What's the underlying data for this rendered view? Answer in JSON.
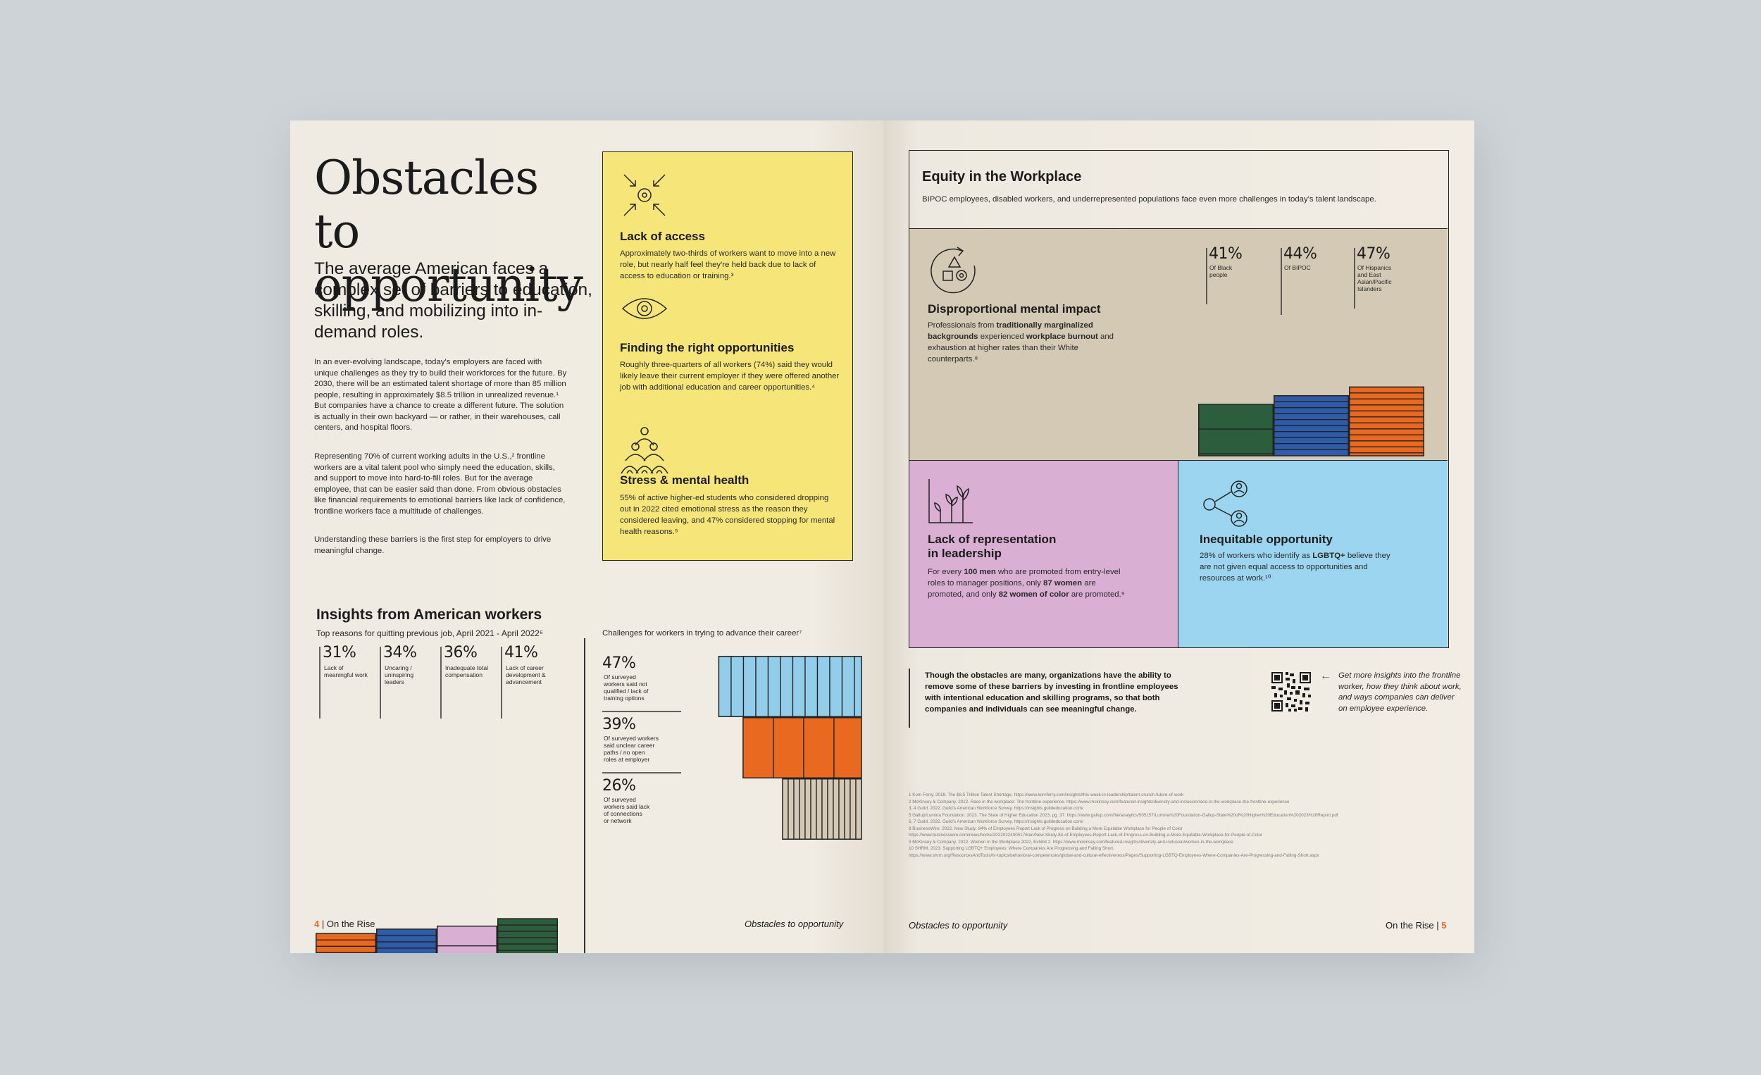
{
  "left_page": {
    "title": "Obstacles to opportunity",
    "lede": "The average American faces a complex set of barriers to education, skilling, and mobilizing into in-demand roles.",
    "paragraphs": [
      "In an ever-evolving landscape, today's employers are faced with unique challenges as they try to build their workforces for the future. By 2030, there will be an estimated talent shortage of more than 85 million people, resulting in approximately $8.5 trillion in unrealized revenue.¹ But companies have a chance to create a different future. The solution is actually in their own backyard — or rather, in their warehouses, call centers, and hospital floors.",
      "Representing 70% of current working adults in the U.S.,² frontline workers are a vital talent pool who simply need the education, skills, and support to move into hard-to-fill roles. But for the average employee, that can be easier said than done. From obvious obstacles like financial requirements to emotional barriers like lack of confidence, frontline workers face a multitude of challenges.",
      "Understanding these barriers is the first step for employers to drive meaningful change."
    ],
    "barriers": [
      {
        "icon": "arrows-converge-icon",
        "heading": "Lack of access",
        "text": "Approximately two-thirds of workers want to move into a new role, but nearly half feel they're held back due to lack of access to education or training.³"
      },
      {
        "icon": "eye-icon",
        "heading": "Finding the right opportunities",
        "text": "Roughly three-quarters of all workers (74%) said they would likely leave their current employer if they were offered another job with additional education and career opportunities.⁴"
      },
      {
        "icon": "people-stack-icon",
        "heading": "Stress & mental health",
        "text": "55% of active higher-ed students who considered dropping out in 2022 cited emotional stress as the reason they considered leaving, and 47% considered stopping for mental health reasons.⁵"
      }
    ],
    "insights_title": "Insights from American workers",
    "quit_chart_subtitle": "Top reasons for quitting previous job, April 2021 - April 2022⁶",
    "advance_chart_subtitle": "Challenges for workers in trying to advance their career⁷",
    "footer_page": "4",
    "footer_pub": "On the Rise",
    "footer_section": "Obstacles to opportunity"
  },
  "right_page": {
    "equity_title": "Equity in the Workplace",
    "equity_sub": "BIPOC employees, disabled workers, and underrepresented populations face even more challenges in today's talent landscape.",
    "mental": {
      "heading": "Disproportional mental impact",
      "text_pre": "Professionals from ",
      "text_b1": "traditionally marginalized backgrounds",
      "text_mid": " experienced ",
      "text_b2": "workplace burnout",
      "text_post": " and exhaustion at higher rates than their White counterparts.⁸"
    },
    "leadership": {
      "heading_1": "Lack of representation",
      "heading_2": "in leadership",
      "t1": "For every ",
      "b1": "100 men",
      "t2": " who are promoted from entry-level roles to manager positions, only ",
      "b2": "87 women",
      "t3": " are promoted, and only ",
      "b3": "82 women of color",
      "t4": " are promoted.⁹"
    },
    "inequitable": {
      "heading": "Inequitable opportunity",
      "t1": "28% of workers who identify as ",
      "b1": "LGBTQ+",
      "t2": " believe they are not given equal access to opportunities and resources at work.¹⁰"
    },
    "closing": "Though the obstacles are many, organizations have the ability to remove some of these barriers by investing in frontline employees with intentional education and skilling programs, so that both companies and individuals can see meaningful change.",
    "qr_cta": "Get more insights into the frontline worker, how they think about work, and ways companies can deliver on employee experience.",
    "footnotes": [
      "1  Korn Ferry. 2018. The $8.5 Trillion Talent Shortage. https://www.kornferry.com/insights/this-week-in-leadership/talent-crunch-future-of-work",
      "2  McKinsey & Company. 2022. Race in the workplace: The frontline experience. https://www.mckinsey.com/featured-insights/diversity-and-inclusion/race-in-the-workplace-the-frontline-experience",
      "3, 4  Guild. 2022. Guild's American Workforce Survey. https://insights.guildeducation.com/",
      "5  Gallup/Lumina Foundation. 2023. The State of Higher Education 2023, pg. 37. https://www.gallup.com/file/analytics/505157/Lumina%20Foundation-Gallup-State%20of%20Higher%20Education%202023%20Report.pdf",
      "6, 7  Guild. 2022. Guild's American Workforce Survey. https://insights.guildeducation.com/",
      "8  BusinessWire. 2022. New Study: 84% of Employees Report Lack of Progress on Building a More Equitable Workplace for People of Color",
      "https://www.businesswire.com/news/home/20220224005176/en/New-Study-84-of-Employees-Report-Lack-of-Progress-on-Building-a-More-Equitable-Workplace-for-People-of-Color",
      "9  McKinsey & Company. 2022. Women in the Workplace 2022, Exhibit 2. https://www.mckinsey.com/featured-insights/diversity-and-inclusion/women-in-the-workplace",
      "10  SHRM. 2023. Supporting LGBTQ+ Employees: Where Companies Are Progressing and Falling Short.",
      "https://www.shrm.org/ResourcesAndTools/hr-topics/behavioral-competencies/global-and-cultural-effectiveness/Pages/Supporting-LGBTQ-Employees-Where-Companies-Are-Progressing-and-Falling-Short.aspx"
    ],
    "footer_section": "Obstacles to opportunity",
    "footer_pub": "On the Rise",
    "footer_page": "5"
  },
  "colors": {
    "orange": "#e8691f",
    "blue": "#2f5ca8",
    "pink": "#d9afd3",
    "green": "#2c5e3d",
    "light_blue": "#92cde9",
    "beige": "#d3c9b4",
    "yellow": "#f6e67a",
    "sky": "#9cd5f0",
    "page": "#f1ece3"
  },
  "chart_data": [
    {
      "type": "bar",
      "title": "Top reasons for quitting previous job, April 2021 - April 2022",
      "categories": [
        "Lack of meaningful work",
        "Uncaring / uninspiring leaders",
        "Inadequate total compensation",
        "Lack of career development & advancement"
      ],
      "values": [
        31,
        34,
        36,
        41
      ],
      "labels": [
        "31%",
        "34%",
        "36%",
        "41%"
      ],
      "colors": [
        "#e8691f",
        "#2f5ca8",
        "#d9afd3",
        "#2c5e3d"
      ]
    },
    {
      "type": "bar",
      "orientation": "horizontal",
      "title": "Challenges for workers in trying to advance their career",
      "categories": [
        "Of surveyed workers said not qualified / lack of training options",
        "Of surveyed workers said unclear career paths / no open roles at employer",
        "Of surveyed workers said lack of connections or network"
      ],
      "values": [
        47,
        39,
        26
      ],
      "labels": [
        "47%",
        "39%",
        "26%"
      ],
      "colors": [
        "#92cde9",
        "#e8691f",
        "#d3c9b4"
      ]
    },
    {
      "type": "bar",
      "title": "Disproportional mental impact",
      "categories": [
        "Of Black people",
        "Of BIPOC",
        "Of Hispanics and East Asian/Pacific Islanders"
      ],
      "values": [
        41,
        44,
        47
      ],
      "labels": [
        "41%",
        "44%",
        "47%"
      ],
      "colors": [
        "#2c5e3d",
        "#2f5ca8",
        "#e8691f"
      ]
    }
  ]
}
